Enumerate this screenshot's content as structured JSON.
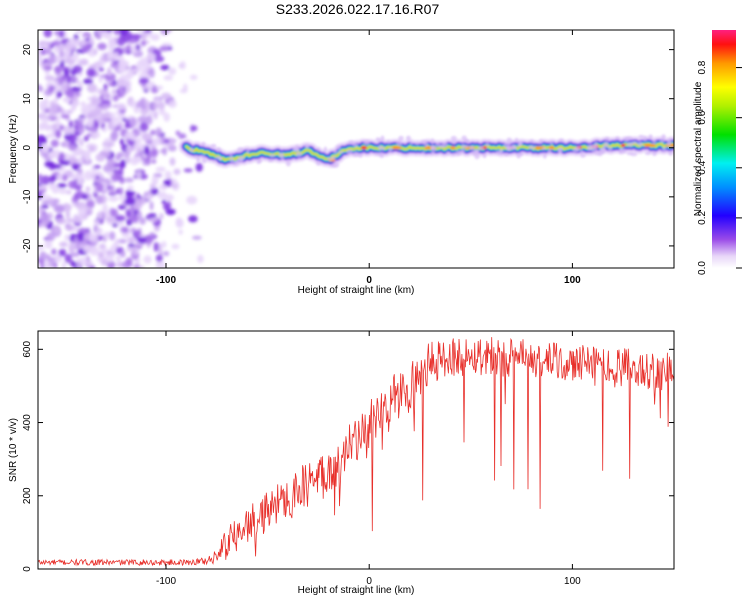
{
  "title": "S233.2026.022.17.16.R07",
  "chart_data": [
    {
      "type": "heatmap",
      "title": "S233.2026.022.17.16.R07",
      "xlabel": "Height of straight line (km)",
      "ylabel": "Frequency (Hz)",
      "xlim": [
        -163,
        150
      ],
      "ylim": [
        -24.5,
        24
      ],
      "xticks": [
        -100,
        0,
        100
      ],
      "yticks": [
        -20,
        -10,
        0,
        10,
        20
      ],
      "colorbar": {
        "label": "Normalized spectral amplitude",
        "range": [
          0,
          0.95
        ],
        "ticks": [
          0.0,
          0.2,
          0.4,
          0.6,
          0.8
        ]
      },
      "ridge": {
        "description_x": [
          -90,
          -80,
          -70,
          -60,
          -50,
          -40,
          -30,
          -20,
          -10,
          0,
          20,
          40,
          60,
          80,
          100,
          120,
          150
        ],
        "frequency_hz": [
          0,
          -1,
          -2.5,
          -1.5,
          -1,
          -1.5,
          -0.5,
          -2.5,
          0,
          0,
          0,
          0,
          0,
          0,
          0,
          0.5,
          0.5
        ]
      },
      "noise_region_x": [
        -163,
        -82
      ]
    },
    {
      "type": "line",
      "xlabel": "Height of straight line (km)",
      "ylabel": "SNR (10 * v/v)",
      "xlim": [
        -163,
        150
      ],
      "ylim": [
        0,
        650
      ],
      "xticks": [
        -100,
        0,
        100
      ],
      "yticks": [
        0,
        200,
        400,
        600
      ],
      "color": "#e8302b",
      "series": [
        {
          "name": "SNR",
          "x": [
            -163,
            -140,
            -120,
            -100,
            -90,
            -80,
            -75,
            -70,
            -60,
            -50,
            -40,
            -30,
            -20,
            -10,
            0,
            10,
            20,
            30,
            40,
            60,
            80,
            100,
            120,
            150
          ],
          "mean": [
            18,
            18,
            18,
            18,
            18,
            22,
            40,
            75,
            120,
            160,
            200,
            230,
            270,
            320,
            380,
            450,
            500,
            560,
            580,
            585,
            570,
            560,
            550,
            540
          ],
          "noise": [
            8,
            8,
            8,
            8,
            8,
            12,
            25,
            40,
            50,
            55,
            60,
            65,
            70,
            75,
            80,
            80,
            70,
            60,
            55,
            55,
            55,
            55,
            55,
            55
          ]
        }
      ]
    }
  ]
}
